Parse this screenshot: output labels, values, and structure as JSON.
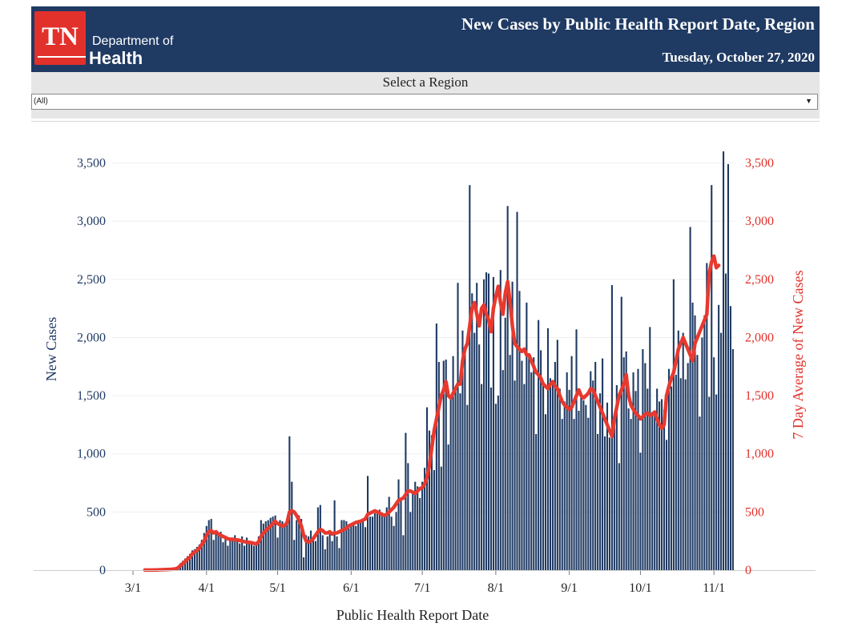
{
  "header": {
    "logo_mark": "TN",
    "logo_dept": "Department of",
    "logo_health": "Health",
    "title": "New Cases by Public Health Report Date, Region",
    "date": "Tuesday, October 27, 2020"
  },
  "filter": {
    "label": "Select a Region",
    "value": "(All)",
    "arrow_icon": "triangle-down-icon"
  },
  "colors": {
    "header_bg": "#1f3a63",
    "logo_red": "#e2302b",
    "bar": "#1f3a63",
    "avg_line": "#e8392e",
    "left_axis_text": "#1f3a63",
    "right_axis_text": "#e2302b"
  },
  "chart_data": {
    "type": "bar",
    "title": "New Cases by Public Health Report Date, Region",
    "xlabel": "Public Health Report Date",
    "ylabel": "New Cases",
    "y2label": "7 Day Average of New Cases",
    "ylim": [
      0,
      3800
    ],
    "y_ticks": [
      0,
      500,
      1000,
      1500,
      2000,
      2500,
      3000,
      3500
    ],
    "y_tick_labels": [
      "0",
      "500",
      "1,000",
      "1,500",
      "2,000",
      "2,500",
      "3,000",
      "3,500"
    ],
    "x_ticks": [
      {
        "day": 0,
        "label": "3/1"
      },
      {
        "day": 31,
        "label": "4/1"
      },
      {
        "day": 61,
        "label": "5/1"
      },
      {
        "day": 92,
        "label": "6/1"
      },
      {
        "day": 122,
        "label": "7/1"
      },
      {
        "day": 153,
        "label": "8/1"
      },
      {
        "day": 184,
        "label": "9/1"
      },
      {
        "day": 214,
        "label": "10/1"
      },
      {
        "day": 245,
        "label": "11/1"
      }
    ],
    "x_range_days": [
      -3,
      250
    ],
    "start_day": 5,
    "series": [
      {
        "name": "New Cases",
        "kind": "bar",
        "values": [
          1,
          1,
          1,
          2,
          2,
          3,
          3,
          4,
          5,
          6,
          8,
          10,
          12,
          14,
          30,
          60,
          80,
          100,
          120,
          140,
          170,
          180,
          200,
          220,
          260,
          320,
          380,
          430,
          440,
          260,
          330,
          300,
          330,
          240,
          290,
          210,
          280,
          280,
          300,
          260,
          230,
          290,
          210,
          280,
          250,
          250,
          210,
          210,
          290,
          430,
          400,
          420,
          430,
          450,
          460,
          470,
          280,
          430,
          420,
          400,
          420,
          1150,
          760,
          260,
          430,
          470,
          440,
          110,
          300,
          290,
          340,
          290,
          250,
          540,
          560,
          300,
          180,
          290,
          320,
          250,
          600,
          290,
          190,
          430,
          430,
          420,
          360,
          390,
          400,
          380,
          400,
          410,
          430,
          370,
          810,
          460,
          460,
          490,
          510,
          520,
          480,
          460,
          540,
          630,
          460,
          380,
          500,
          780,
          620,
          300,
          1180,
          920,
          500,
          670,
          760,
          720,
          620,
          760,
          880,
          1400,
          1200,
          1160,
          860,
          2120,
          1790,
          890,
          1800,
          1810,
          1080,
          1500,
          1840,
          1550,
          2470,
          1520,
          2060,
          1880,
          1420,
          3310,
          2380,
          2040,
          2470,
          1940,
          1600,
          2500,
          2560,
          2550,
          1570,
          2520,
          1430,
          1500,
          2580,
          1720,
          2170,
          3130,
          1850,
          2480,
          1630,
          3080,
          2400,
          1800,
          1600,
          2300,
          1860,
          1700,
          1830,
          1170,
          2150,
          1890,
          1620,
          1340,
          2080,
          1650,
          1600,
          1790,
          1980,
          1560,
          1300,
          1450,
          1700,
          1550,
          1840,
          1300,
          2070,
          1370,
          1520,
          1460,
          1420,
          1310,
          1710,
          1630,
          1790,
          1170,
          1520,
          1820,
          1150,
          1440,
          1140,
          2450,
          1230,
          1590,
          920,
          2350,
          1830,
          1880,
          1390,
          1300,
          1700,
          1540,
          1730,
          1010,
          1900,
          1780,
          1560,
          2090,
          1360,
          1370,
          1560,
          1450,
          1470,
          1380,
          1120,
          1730,
          1580,
          2500,
          1680,
          2060,
          1650,
          2040,
          1640,
          1780,
          2950,
          2300,
          2190,
          1850,
          1320,
          2000,
          2190,
          2640,
          1490,
          3310,
          1830,
          1510,
          2280,
          2040,
          3600,
          2550,
          3490,
          2270,
          1900
        ]
      },
      {
        "name": "7 Day Average of New Cases",
        "kind": "line",
        "values": [
          1,
          1,
          1,
          1,
          2,
          2,
          3,
          3,
          4,
          5,
          6,
          7,
          9,
          11,
          20,
          38,
          56,
          75,
          95,
          110,
          140,
          155,
          170,
          190,
          220,
          250,
          300,
          330,
          340,
          320,
          330,
          310,
          300,
          290,
          280,
          270,
          265,
          265,
          260,
          260,
          255,
          250,
          245,
          240,
          240,
          235,
          230,
          225,
          245,
          290,
          320,
          340,
          360,
          380,
          400,
          420,
          400,
          390,
          380,
          385,
          410,
          500,
          510,
          500,
          470,
          430,
          380,
          300,
          250,
          240,
          250,
          270,
          300,
          330,
          350,
          340,
          320,
          320,
          330,
          310,
          320,
          320,
          330,
          340,
          350,
          360,
          380,
          390,
          400,
          410,
          415,
          420,
          430,
          440,
          480,
          490,
          500,
          510,
          500,
          490,
          480,
          470,
          480,
          500,
          520,
          540,
          570,
          600,
          610,
          620,
          650,
          680,
          680,
          670,
          660,
          680,
          700,
          710,
          740,
          800,
          900,
          1050,
          1200,
          1300,
          1400,
          1500,
          1550,
          1620,
          1500,
          1480,
          1520,
          1560,
          1600,
          1600,
          1800,
          1900,
          1950,
          2100,
          2250,
          2300,
          2200,
          2100,
          2250,
          2280,
          2200,
          2150,
          2050,
          2250,
          2350,
          2440,
          2300,
          2200,
          2380,
          2480,
          2300,
          2100,
          1950,
          1920,
          1900,
          1880,
          1900,
          1850,
          1850,
          1800,
          1750,
          1700,
          1680,
          1650,
          1600,
          1580,
          1560,
          1600,
          1620,
          1580,
          1560,
          1500,
          1450,
          1420,
          1400,
          1380,
          1400,
          1450,
          1500,
          1550,
          1500,
          1480,
          1500,
          1520,
          1560,
          1550,
          1500,
          1450,
          1400,
          1350,
          1300,
          1250,
          1200,
          1150,
          1300,
          1400,
          1500,
          1550,
          1600,
          1680,
          1500,
          1420,
          1380,
          1350,
          1330,
          1300,
          1320,
          1340,
          1350,
          1330,
          1340,
          1360,
          1300,
          1250,
          1220,
          1250,
          1500,
          1580,
          1650,
          1700,
          1800,
          1900,
          1950,
          2000,
          1950,
          1900,
          1850,
          1800,
          1950,
          2000,
          2050,
          2100,
          2150,
          2200,
          2550,
          2650,
          2700,
          2600,
          2620
        ]
      }
    ]
  }
}
